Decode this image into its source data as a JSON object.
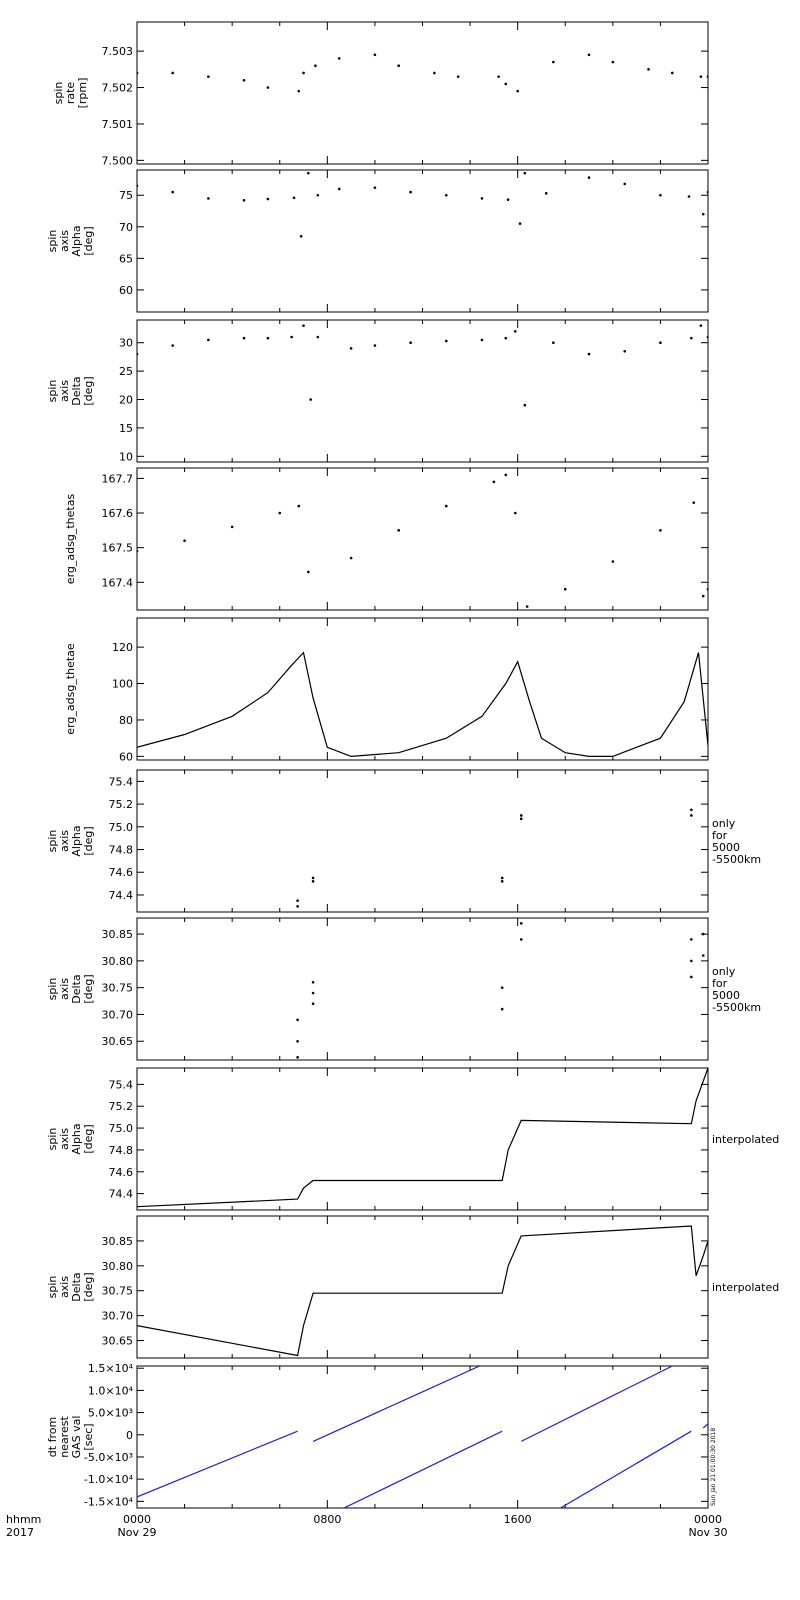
{
  "time_axis": {
    "label_line1": "hhmm",
    "label_line2": "2017",
    "range_hours": [
      0,
      24
    ],
    "ticks": [
      {
        "hour": 0,
        "line1": "0000",
        "line2": "Nov 29"
      },
      {
        "hour": 8,
        "line1": "0800",
        "line2": ""
      },
      {
        "hour": 16,
        "line1": "1600",
        "line2": ""
      },
      {
        "hour": 24,
        "line1": "0000",
        "line2": "Nov 30"
      }
    ]
  },
  "stamp": "Sun Jan 21 01:00:30 2018",
  "chart_data": [
    {
      "type": "scatter",
      "ylabel_lines": [
        "spin",
        "rate",
        "[rpm]"
      ],
      "side_note": [],
      "ylim": [
        7.4999,
        7.5038
      ],
      "yticks": [
        7.5,
        7.501,
        7.502,
        7.503
      ],
      "ytick_labels": [
        "7.500",
        "7.501",
        "7.502",
        "7.503"
      ],
      "series": [
        {
          "color": "#000000",
          "x": [
            0,
            1.5,
            3,
            4.5,
            5.5,
            6.8,
            7,
            7.5,
            8.5,
            10,
            11,
            12.5,
            13.5,
            15.2,
            15.5,
            16,
            17.5,
            19,
            20,
            21.5,
            22.5,
            23.7,
            24
          ],
          "y": [
            7.5024,
            7.5024,
            7.5023,
            7.5022,
            7.502,
            7.5019,
            7.5024,
            7.5026,
            7.5028,
            7.5029,
            7.5026,
            7.5024,
            7.5023,
            7.5023,
            7.5021,
            7.5019,
            7.5027,
            7.5029,
            7.5027,
            7.5025,
            7.5024,
            7.5023,
            7.5023
          ]
        }
      ]
    },
    {
      "type": "scatter",
      "ylabel_lines": [
        "spin",
        "axis",
        "Alpha",
        "[deg]"
      ],
      "side_note": [],
      "ylim": [
        56.5,
        79
      ],
      "yticks": [
        60,
        65,
        70,
        75
      ],
      "ytick_labels": [
        "60",
        "65",
        "70",
        "75"
      ],
      "series": [
        {
          "color": "#000000",
          "x": [
            0,
            1.5,
            3,
            4.5,
            5.5,
            6.6,
            6.9,
            7.2,
            7.6,
            8.5,
            10,
            11.5,
            13,
            14.5,
            15.6,
            16.1,
            16.3,
            17.2,
            19,
            20.5,
            22,
            23.2,
            23.8,
            24
          ],
          "y": [
            76.5,
            75.5,
            74.5,
            74.2,
            74.4,
            74.6,
            68.5,
            78.5,
            75,
            76,
            76.2,
            75.5,
            75,
            74.5,
            74.3,
            70.5,
            78.5,
            75.3,
            77.8,
            76.8,
            75,
            74.8,
            72,
            75.5
          ]
        }
      ]
    },
    {
      "type": "scatter",
      "ylabel_lines": [
        "spin",
        "axis",
        "Delta",
        "[deg]"
      ],
      "side_note": [],
      "ylim": [
        9,
        34
      ],
      "yticks": [
        10,
        15,
        20,
        25,
        30
      ],
      "ytick_labels": [
        "10",
        "15",
        "20",
        "25",
        "30"
      ],
      "series": [
        {
          "color": "#000000",
          "x": [
            0,
            1.5,
            3,
            4.5,
            5.5,
            6.5,
            7,
            7.3,
            7.6,
            9,
            10,
            11.5,
            13,
            14.5,
            15.5,
            15.9,
            16.3,
            17.5,
            19,
            20.5,
            22,
            23.3,
            23.7,
            24
          ],
          "y": [
            28,
            29.5,
            30.5,
            30.8,
            30.8,
            31,
            33,
            20,
            31,
            29,
            29.5,
            30,
            30.3,
            30.5,
            30.8,
            32,
            19,
            30,
            28,
            28.5,
            30,
            30.8,
            33,
            31
          ]
        }
      ]
    },
    {
      "type": "scatter",
      "ylabel_lines": [
        "erg_adsg_thetas"
      ],
      "side_note": [],
      "ylim": [
        167.32,
        167.73
      ],
      "yticks": [
        167.4,
        167.5,
        167.6,
        167.7
      ],
      "ytick_labels": [
        "167.4",
        "167.5",
        "167.6",
        "167.7"
      ],
      "series": [
        {
          "color": "#000000",
          "x": [
            0,
            2,
            4,
            6,
            6.8,
            7.2,
            9,
            11,
            13,
            15,
            15.5,
            15.9,
            16.4,
            18,
            20,
            22,
            23.4,
            23.8,
            24
          ],
          "y": [
            167.49,
            167.52,
            167.56,
            167.6,
            167.62,
            167.43,
            167.47,
            167.55,
            167.62,
            167.69,
            167.71,
            167.6,
            167.33,
            167.38,
            167.46,
            167.55,
            167.63,
            167.36,
            167.38
          ]
        }
      ]
    },
    {
      "type": "line",
      "ylabel_lines": [
        "erg_adsg_thetae"
      ],
      "side_note": [],
      "ylim": [
        58,
        136
      ],
      "yticks": [
        60,
        80,
        100,
        120
      ],
      "ytick_labels": [
        "60",
        "80",
        "100",
        "120"
      ],
      "series": [
        {
          "color": "#000000",
          "x": [
            0,
            2,
            4,
            5.5,
            6.5,
            7,
            7.4,
            8,
            9,
            11,
            13,
            14.5,
            15.5,
            16,
            16.5,
            17,
            18,
            19,
            20,
            22,
            23,
            23.6,
            24
          ],
          "y": [
            65,
            72,
            82,
            95,
            110,
            117,
            92,
            65,
            60,
            62,
            70,
            82,
            100,
            112,
            90,
            70,
            62,
            60,
            60,
            70,
            90,
            117,
            66
          ]
        }
      ]
    },
    {
      "type": "scatter",
      "ylabel_lines": [
        "spin",
        "axis",
        "Alpha",
        "[deg]"
      ],
      "side_note": [
        "only",
        "for",
        "5000",
        "-5500km"
      ],
      "ylim": [
        74.25,
        75.5
      ],
      "yticks": [
        74.4,
        74.6,
        74.8,
        75,
        75.2,
        75.4
      ],
      "ytick_labels": [
        "74.4",
        "74.6",
        "74.8",
        "75.0",
        "75.2",
        "75.4"
      ],
      "series": [
        {
          "color": "#000000",
          "x": [
            6.75,
            6.75,
            7.4,
            7.4,
            15.35,
            15.35,
            16.15,
            16.15,
            23.3,
            23.3
          ],
          "y": [
            74.3,
            74.35,
            74.52,
            74.55,
            74.52,
            74.55,
            75.07,
            75.1,
            75.1,
            75.15
          ]
        }
      ]
    },
    {
      "type": "scatter",
      "ylabel_lines": [
        "spin",
        "axis",
        "Delta",
        "[deg]"
      ],
      "side_note": [
        "only",
        "for",
        "5000",
        "-5500km"
      ],
      "ylim": [
        30.615,
        30.88
      ],
      "yticks": [
        30.65,
        30.7,
        30.75,
        30.8,
        30.85
      ],
      "ytick_labels": [
        "30.65",
        "30.70",
        "30.75",
        "30.80",
        "30.85"
      ],
      "series": [
        {
          "color": "#000000",
          "x": [
            6.75,
            6.75,
            6.75,
            7.4,
            7.4,
            7.4,
            15.35,
            15.35,
            16.15,
            16.15,
            23.3,
            23.3,
            23.3,
            23.8,
            23.8
          ],
          "y": [
            30.62,
            30.65,
            30.69,
            30.72,
            30.74,
            30.76,
            30.71,
            30.75,
            30.84,
            30.87,
            30.77,
            30.8,
            30.84,
            30.81,
            30.85
          ]
        }
      ]
    },
    {
      "type": "line",
      "ylabel_lines": [
        "spin",
        "axis",
        "Alpha",
        "[deg]"
      ],
      "side_note": [
        "interpolated"
      ],
      "ylim": [
        74.25,
        75.55
      ],
      "yticks": [
        74.4,
        74.6,
        74.8,
        75,
        75.2,
        75.4
      ],
      "ytick_labels": [
        "74.4",
        "74.6",
        "74.8",
        "75.0",
        "75.2",
        "75.4"
      ],
      "series": [
        {
          "color": "#000000",
          "x": [
            0,
            6.75,
            7.0,
            7.4,
            15.35,
            15.6,
            16.15,
            23.3,
            23.5,
            24
          ],
          "y": [
            74.28,
            74.35,
            74.45,
            74.52,
            74.52,
            74.8,
            75.07,
            75.04,
            75.25,
            75.55
          ]
        }
      ]
    },
    {
      "type": "line",
      "ylabel_lines": [
        "spin",
        "axis",
        "Delta",
        "[deg]"
      ],
      "side_note": [
        "interpolated"
      ],
      "ylim": [
        30.615,
        30.9
      ],
      "yticks": [
        30.65,
        30.7,
        30.75,
        30.8,
        30.85
      ],
      "ytick_labels": [
        "30.65",
        "30.70",
        "30.75",
        "30.80",
        "30.85"
      ],
      "series": [
        {
          "color": "#000000",
          "x": [
            0,
            6.75,
            7.0,
            7.4,
            15.35,
            15.6,
            16.15,
            23.3,
            23.5,
            23.8,
            24
          ],
          "y": [
            30.68,
            30.62,
            30.68,
            30.745,
            30.745,
            30.8,
            30.86,
            30.88,
            30.78,
            30.82,
            30.85
          ]
        }
      ]
    },
    {
      "type": "line",
      "ylabel_lines": [
        "dt from",
        "nearest",
        "GAS val",
        "[sec]"
      ],
      "side_note": [],
      "ylim": [
        -16500,
        15500
      ],
      "yticks": [
        -15000,
        -10000,
        -5000,
        0,
        5000,
        10000,
        15000
      ],
      "ytick_labels": [
        "-1.5×10⁴",
        "-1.0×10⁴",
        "-5.0×10³",
        "0",
        "5.0×10³",
        "1.0×10⁴",
        "1.5×10⁴"
      ],
      "series": [
        {
          "color": "#1f1fd6",
          "x": [
            0,
            6.75
          ],
          "y": [
            -14000,
            800
          ]
        },
        {
          "color": "#1f1fd6",
          "x": [
            7.4,
            14.4
          ],
          "y": [
            -1500,
            15500
          ]
        },
        {
          "color": "#1f1fd6",
          "x": [
            8.7,
            15.35
          ],
          "y": [
            -16500,
            800
          ]
        },
        {
          "color": "#1f1fd6",
          "x": [
            16.15,
            22.5
          ],
          "y": [
            -1500,
            15500
          ]
        },
        {
          "color": "#1f1fd6",
          "x": [
            17.8,
            23.3
          ],
          "y": [
            -16500,
            800
          ]
        },
        {
          "color": "#1f1fd6",
          "x": [
            23.8,
            24
          ],
          "y": [
            1500,
            2500
          ]
        }
      ]
    }
  ]
}
